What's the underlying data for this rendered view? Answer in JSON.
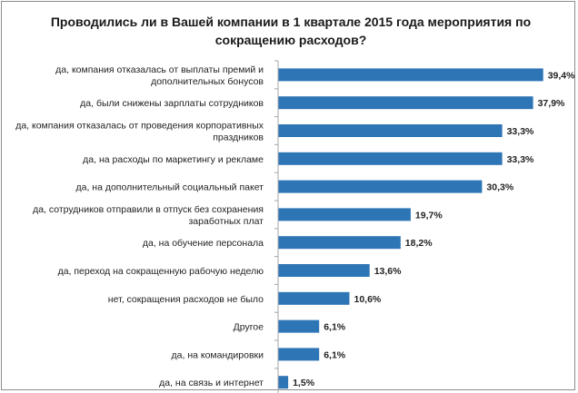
{
  "chart_data": {
    "type": "bar",
    "orientation": "horizontal",
    "title_lines": [
      "Проводились ли в Вашей компании в 1 квартале 2015 года мероприятия по",
      "сокращению расходов?"
    ],
    "categories": [
      [
        "да, компания отказалась  от выплаты премий и",
        "дополнительных бонусов"
      ],
      [
        "да,  были снижены зарплаты сотрудников"
      ],
      [
        "да, компания отказалась  от проведения  корпоративных",
        "праздников"
      ],
      [
        "да, на расходы по маркетингу и рекламе"
      ],
      [
        "да, на дополнительный социальный пакет"
      ],
      [
        "да, сотрудников отправили в отпуск без сохранения",
        "заработных плат"
      ],
      [
        "да, на обучение персонала"
      ],
      [
        "да, переход на сокращенную рабочую неделю"
      ],
      [
        "нет, сокращения расходов не было"
      ],
      [
        "Другое"
      ],
      [
        "да, на командировки"
      ],
      [
        "да, на связь и интернет"
      ]
    ],
    "values": [
      39.4,
      37.9,
      33.3,
      33.3,
      30.3,
      19.7,
      18.2,
      13.6,
      10.6,
      6.1,
      6.1,
      1.5
    ],
    "value_labels": [
      "39,4%",
      "37,9%",
      "33,3%",
      "33,3%",
      "30,3%",
      "19,7%",
      "18,2%",
      "13,6%",
      "10,6%",
      "6,1%",
      "6,1%",
      "1,5%"
    ],
    "xlim": [
      0,
      42
    ],
    "grid": false,
    "legend": "none",
    "bar_color": "#2e75b6",
    "axis_color": "#a6a6a6"
  }
}
